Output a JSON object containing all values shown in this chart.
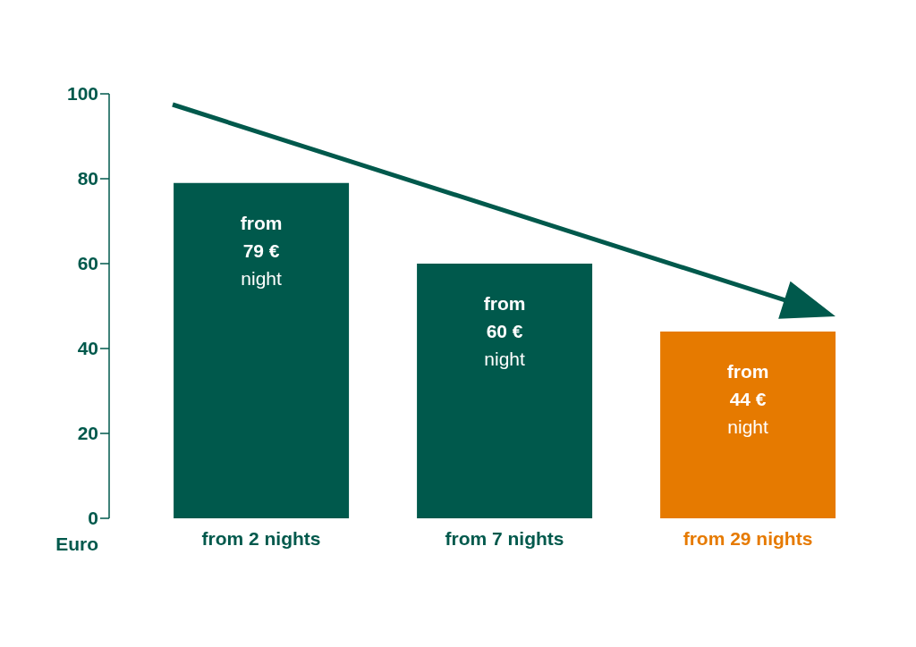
{
  "chart_data": {
    "type": "bar",
    "ylabel": "Euro",
    "categories": [
      "from 2 nights",
      "from 7 nights",
      "from 29 nights"
    ],
    "values": [
      79,
      60,
      44
    ],
    "colors": [
      "#00594c",
      "#00594c",
      "#e67a00"
    ],
    "value_labels": [
      "from\n79 €\nnight",
      "from\n60 €\nnight",
      "from\n44 €\nnight"
    ],
    "ylim": [
      0,
      100
    ],
    "yticks": [
      0,
      20,
      40,
      60,
      80,
      100
    ],
    "grid": false,
    "legend": false
  }
}
